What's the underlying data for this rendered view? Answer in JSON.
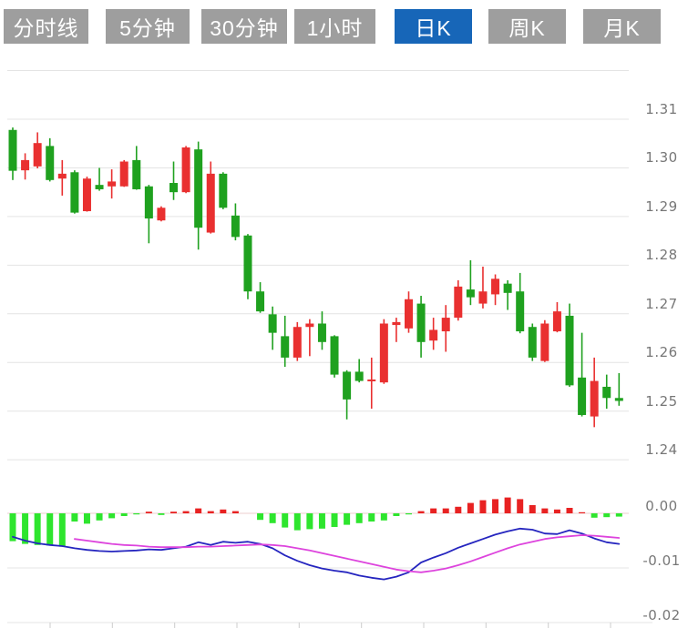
{
  "tabbar": {
    "active_label": "日K",
    "tabs": [
      {
        "label": "分时线"
      },
      {
        "label": "5分钟"
      },
      {
        "label": "30分钟"
      },
      {
        "label": "1小时"
      },
      {
        "label": "日K"
      },
      {
        "label": "周K"
      },
      {
        "label": "月K"
      }
    ]
  },
  "colors": {
    "tab_bg": "#9E9E9E",
    "tab_active_bg": "#1766B8",
    "tab_text": "#FFFFFF",
    "candle_up_red": "#E93030",
    "candle_down_green": "#1FA11F",
    "macd_bar_up_red": "#E82222",
    "macd_bar_down_green": "#2EE52E",
    "dif_line_blue": "#2525BF",
    "dea_line_magenta": "#DD44DD",
    "gridline": "#E4E4E4",
    "zero_line_pink": "#EDCFCF",
    "axis_tick": "#CCCCCC",
    "axis_text": "#777777"
  },
  "chart_data": {
    "type": "candlestick",
    "title": "",
    "color_convention": "chinese: red = up candle, green = down candle",
    "panels": [
      "price-kline",
      "macd"
    ],
    "price_axis": {
      "range": [
        1.24,
        1.32
      ],
      "unlabeled_gridlines": [
        1.32
      ],
      "ticks": [
        {
          "label": "1.31",
          "value": 1.31
        },
        {
          "label": "1.30",
          "value": 1.3
        },
        {
          "label": "1.29",
          "value": 1.29
        },
        {
          "label": "1.28",
          "value": 1.28
        },
        {
          "label": "1.27",
          "value": 1.27
        },
        {
          "label": "1.26",
          "value": 1.26
        },
        {
          "label": "1.25",
          "value": 1.25
        },
        {
          "label": "1.24",
          "value": 1.24
        }
      ]
    },
    "macd_axis": {
      "range": [
        -0.02,
        0.002
      ],
      "ticks": [
        {
          "label": "0.00",
          "value": 0
        },
        {
          "label": "-0.01",
          "value": -0.01
        },
        {
          "label": "-0.02",
          "value": -0.02
        }
      ]
    },
    "candles_ohlc": [
      [
        1.3078,
        1.3083,
        1.2975,
        1.2994
      ],
      [
        1.2995,
        1.303,
        1.2976,
        1.3016
      ],
      [
        1.3003,
        1.3073,
        1.2999,
        1.3051
      ],
      [
        1.3045,
        1.3061,
        1.2972,
        1.2975
      ],
      [
        1.2978,
        1.3016,
        1.2943,
        1.2988
      ],
      [
        1.2991,
        1.2995,
        1.2906,
        1.2908
      ],
      [
        1.2911,
        1.2982,
        1.291,
        1.2978
      ],
      [
        1.2965,
        1.3,
        1.2953,
        1.2956
      ],
      [
        1.2962,
        1.2997,
        1.2937,
        1.2972
      ],
      [
        1.2962,
        1.3016,
        1.2961,
        1.3013
      ],
      [
        1.3016,
        1.3045,
        1.2955,
        1.2956
      ],
      [
        1.2962,
        1.2965,
        1.2845,
        1.2896
      ],
      [
        1.2892,
        1.2921,
        1.289,
        1.2918
      ],
      [
        1.2969,
        1.3013,
        1.2934,
        1.295
      ],
      [
        1.295,
        1.3045,
        1.2948,
        1.3042
      ],
      [
        1.3038,
        1.3054,
        1.2832,
        1.2877
      ],
      [
        1.2867,
        1.3013,
        1.2865,
        1.2988
      ],
      [
        1.2988,
        1.2991,
        1.2915,
        1.2918
      ],
      [
        1.2902,
        1.2927,
        1.2851,
        1.2858
      ],
      [
        1.2861,
        1.2864,
        1.273,
        1.2746
      ],
      [
        1.2746,
        1.2765,
        1.2702,
        1.2705
      ],
      [
        1.2699,
        1.2715,
        1.2626,
        1.2661
      ],
      [
        1.2654,
        1.2696,
        1.2591,
        1.261
      ],
      [
        1.261,
        1.2683,
        1.2603,
        1.2673
      ],
      [
        1.2673,
        1.2689,
        1.2613,
        1.268
      ],
      [
        1.268,
        1.2705,
        1.2626,
        1.2642
      ],
      [
        1.2654,
        1.2656,
        1.2569,
        1.2575
      ],
      [
        1.2581,
        1.2584,
        1.2483,
        1.2524
      ],
      [
        1.2581,
        1.2607,
        1.2559,
        1.2562
      ],
      [
        1.2562,
        1.261,
        1.2505,
        1.2565
      ],
      [
        1.2559,
        1.2689,
        1.2556,
        1.268
      ],
      [
        1.2677,
        1.2692,
        1.2642,
        1.2683
      ],
      [
        1.267,
        1.2746,
        1.2661,
        1.273
      ],
      [
        1.2721,
        1.2737,
        1.261,
        1.2642
      ],
      [
        1.2645,
        1.2692,
        1.2626,
        1.2667
      ],
      [
        1.2664,
        1.2718,
        1.2622,
        1.2692
      ],
      [
        1.2692,
        1.2769,
        1.2686,
        1.2756
      ],
      [
        1.275,
        1.281,
        1.2718,
        1.2734
      ],
      [
        1.2721,
        1.2797,
        1.2711,
        1.2746
      ],
      [
        1.274,
        1.2781,
        1.2718,
        1.2772
      ],
      [
        1.2762,
        1.2769,
        1.2708,
        1.2743
      ],
      [
        1.2746,
        1.2784,
        1.266,
        1.2664
      ],
      [
        1.2673,
        1.268,
        1.2603,
        1.261
      ],
      [
        1.2603,
        1.2687,
        1.2601,
        1.268
      ],
      [
        1.2664,
        1.2724,
        1.2662,
        1.2705
      ],
      [
        1.2696,
        1.2721,
        1.255,
        1.2553
      ],
      [
        1.2569,
        1.2661,
        1.2489,
        1.2492
      ],
      [
        1.2489,
        1.261,
        1.2467,
        1.2562
      ],
      [
        1.255,
        1.2575,
        1.2505,
        1.2527
      ],
      [
        1.2527,
        1.2578,
        1.2511,
        1.2521
      ]
    ],
    "macd": {
      "histogram": [
        -0.0051,
        -0.0056,
        -0.0058,
        -0.0059,
        -0.0061,
        -0.0015,
        -0.0019,
        -0.0013,
        -0.0009,
        -0.0005,
        -0.0002,
        0.0003,
        -0.0003,
        0.0003,
        0.0004,
        0.0009,
        0.0004,
        0.0007,
        0.0004,
        0.0,
        -0.0012,
        -0.0018,
        -0.0026,
        -0.0031,
        -0.0029,
        -0.0028,
        -0.0025,
        -0.0021,
        -0.0018,
        -0.0015,
        -0.0013,
        -0.0005,
        -0.0002,
        0.0004,
        0.0009,
        0.0009,
        0.0012,
        0.0019,
        0.0024,
        0.0026,
        0.0029,
        0.0026,
        0.0015,
        0.0009,
        0.0007,
        0.001,
        0.0002,
        -0.0008,
        -0.0007,
        -0.0006
      ],
      "dif": [
        -0.0043,
        -0.005,
        -0.0055,
        -0.0058,
        -0.006,
        -0.0064,
        -0.0067,
        -0.0069,
        -0.007,
        -0.0069,
        -0.0068,
        -0.0066,
        -0.0067,
        -0.0064,
        -0.0061,
        -0.0053,
        -0.0058,
        -0.0052,
        -0.0054,
        -0.0052,
        -0.0056,
        -0.0064,
        -0.0077,
        -0.0087,
        -0.0095,
        -0.0101,
        -0.0105,
        -0.0108,
        -0.0114,
        -0.0118,
        -0.0121,
        -0.0116,
        -0.0108,
        -0.009,
        -0.0081,
        -0.0073,
        -0.0063,
        -0.0055,
        -0.0047,
        -0.0039,
        -0.0033,
        -0.0028,
        -0.003,
        -0.0037,
        -0.0038,
        -0.0031,
        -0.0037,
        -0.0046,
        -0.0053,
        -0.0056
      ],
      "dea": [
        null,
        null,
        null,
        null,
        null,
        -0.0047,
        -0.005,
        -0.0053,
        -0.0056,
        -0.0058,
        -0.0059,
        -0.0061,
        -0.0062,
        -0.0062,
        -0.0062,
        -0.0061,
        -0.0061,
        -0.006,
        -0.0059,
        -0.0058,
        -0.0057,
        -0.0058,
        -0.006,
        -0.0064,
        -0.0068,
        -0.0073,
        -0.0078,
        -0.0083,
        -0.0088,
        -0.0093,
        -0.0098,
        -0.0103,
        -0.0106,
        -0.0108,
        -0.0105,
        -0.0101,
        -0.0095,
        -0.0088,
        -0.008,
        -0.0072,
        -0.0064,
        -0.0057,
        -0.0052,
        -0.0047,
        -0.0044,
        -0.0042,
        -0.004,
        -0.0041,
        -0.0043,
        -0.0045
      ]
    }
  }
}
